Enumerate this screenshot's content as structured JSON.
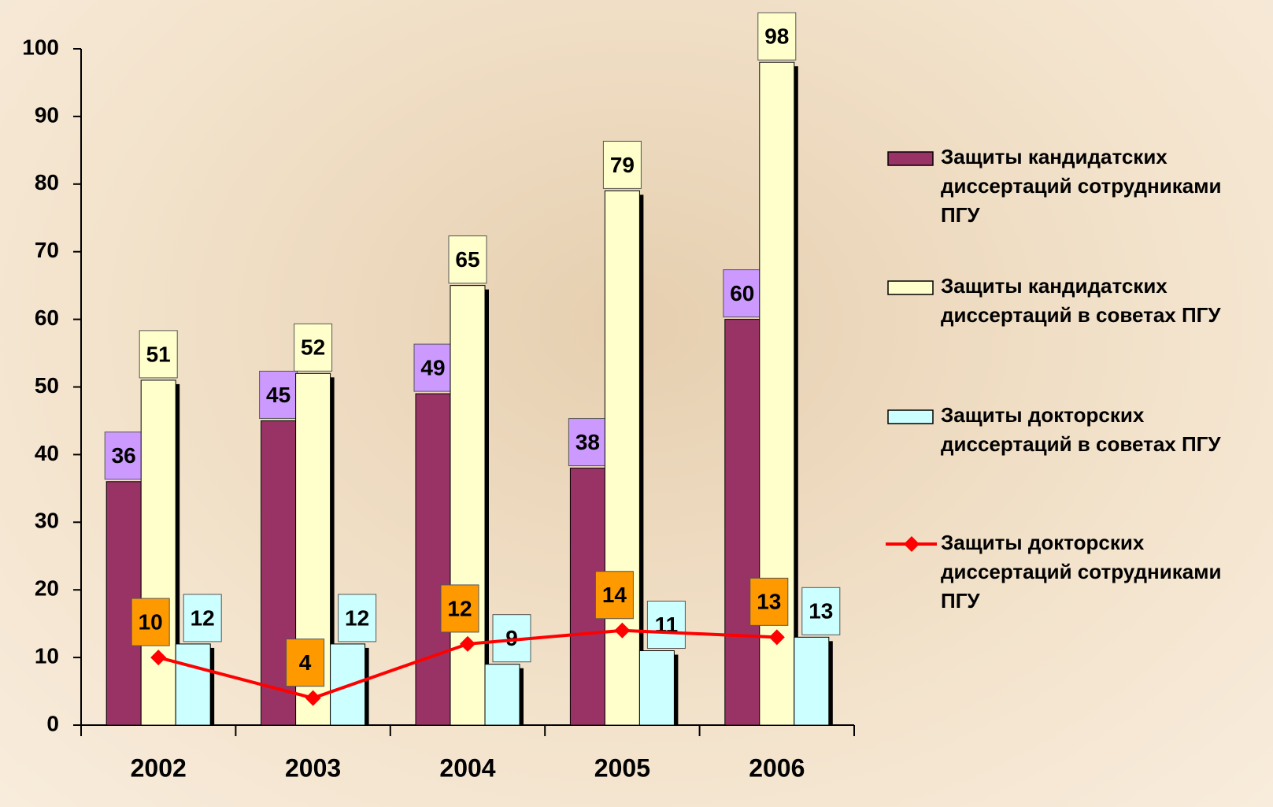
{
  "chart_data": {
    "type": "bar",
    "categories": [
      "2002",
      "2003",
      "2004",
      "2005",
      "2006"
    ],
    "series": [
      {
        "name": "Защиты кандидатских диссертаций сотрудниками ПГУ",
        "color": "#993366",
        "label_color": "#cc99ff",
        "values": [
          36,
          45,
          49,
          38,
          60
        ]
      },
      {
        "name": "Защиты кандидатских диссертаций в советах ПГУ",
        "color": "#ffffcc",
        "label_color": "#ffffcc",
        "values": [
          51,
          52,
          65,
          79,
          98
        ]
      },
      {
        "name": "Защиты докторских диссертаций в советах ПГУ",
        "color": "#ccffff",
        "label_color": "#ccffff",
        "values": [
          12,
          12,
          9,
          11,
          13
        ]
      },
      {
        "name": "Защиты докторских диссертаций сотрудниками ПГУ",
        "type": "line",
        "color": "#ff0000",
        "label_color": "#ff9900",
        "values": [
          10,
          4,
          12,
          14,
          13
        ]
      }
    ],
    "ylim": [
      0,
      100
    ],
    "yticks": [
      0,
      10,
      20,
      30,
      40,
      50,
      60,
      70,
      80,
      90,
      100
    ],
    "legend": "right"
  }
}
